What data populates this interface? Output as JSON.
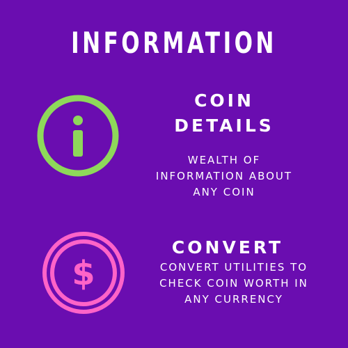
{
  "page": {
    "title": "INFORMATION",
    "background": "#6a0db0"
  },
  "sections": [
    {
      "icon": "info-circle-icon",
      "icon_color": "#8ed85a",
      "heading_lines": [
        "COIN",
        "DETAILS"
      ],
      "description_lines": [
        "WEALTH OF",
        "INFORMATION ABOUT",
        "ANY COIN"
      ]
    },
    {
      "icon": "dollar-coin-icon",
      "icon_color": "#ff63c8",
      "heading_lines": [
        "CONVERT"
      ],
      "description_lines": [
        "CONVERT UTILITIES TO",
        "CHECK COIN WORTH IN",
        "ANY CURRENCY"
      ]
    }
  ]
}
